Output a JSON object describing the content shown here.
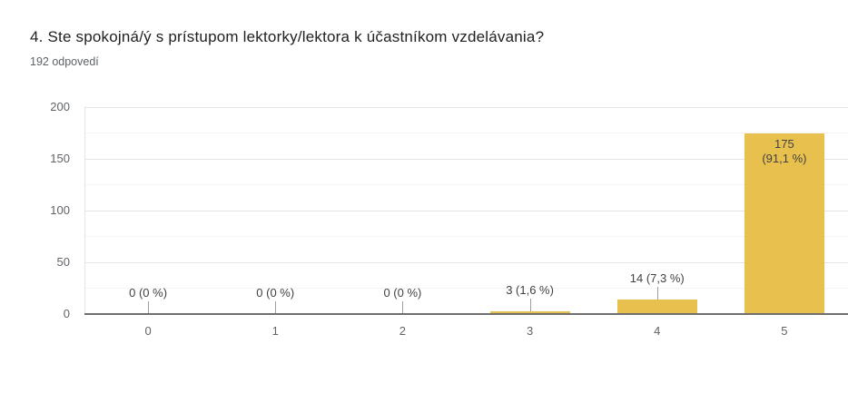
{
  "chart_data": {
    "type": "bar",
    "title": "4. Ste spokojná/ý s prístupom lektorky/lektora k účastníkom vzdelávania?",
    "subtitle": "192 odpovedí",
    "categories": [
      "0",
      "1",
      "2",
      "3",
      "4",
      "5"
    ],
    "values": [
      0,
      0,
      0,
      3,
      14,
      175
    ],
    "bar_labels": [
      "0 (0 %)",
      "0 (0 %)",
      "0 (0 %)",
      "3 (1,6 %)",
      "14 (7,3 %)",
      "175 (91,1 %)"
    ],
    "bar_label_lines": [
      [
        "0 (0 %)"
      ],
      [
        "0 (0 %)"
      ],
      [
        "0 (0 %)"
      ],
      [
        "3 (1,6 %)"
      ],
      [
        "14 (7,3 %)"
      ],
      [
        "175",
        "(91,1 %)"
      ]
    ],
    "xlabel": "",
    "ylabel": "",
    "ylim": [
      0,
      200
    ],
    "yticks": [
      0,
      50,
      100,
      150,
      200
    ],
    "minor_ytick_step": 25,
    "grid": true,
    "legend": "none",
    "bar_color": "#e8c04e",
    "axis_line_color": "#6f6f6f",
    "major_grid_color": "#e4e4e4",
    "minor_grid_color": "#f4f4f4",
    "label_color": "#424242",
    "tick_color": "#5f6368",
    "background": "#ffffff"
  }
}
